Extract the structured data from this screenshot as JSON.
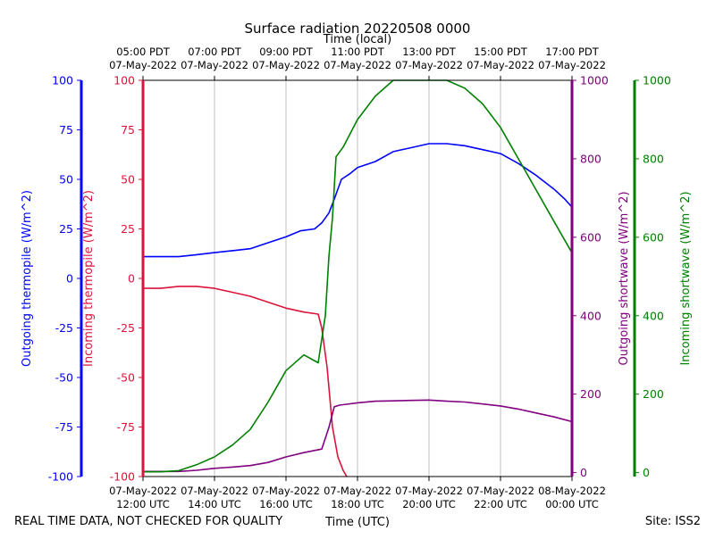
{
  "chart_data": {
    "type": "line",
    "title": "Surface radiation 20220508 0000",
    "top_axis_title": "Time (local)",
    "xlabel": "Time (UTC)",
    "footer_left": "REAL TIME DATA, NOT CHECKED FOR QUALITY",
    "footer_right": "Site: ISS2",
    "x_range_hours": [
      12,
      24
    ],
    "x_grid": true,
    "bottom_ticks": [
      {
        "hour": 12,
        "l1": "07-May-2022",
        "l2": "12:00 UTC"
      },
      {
        "hour": 14,
        "l1": "07-May-2022",
        "l2": "14:00 UTC"
      },
      {
        "hour": 16,
        "l1": "07-May-2022",
        "l2": "16:00 UTC"
      },
      {
        "hour": 18,
        "l1": "07-May-2022",
        "l2": "18:00 UTC"
      },
      {
        "hour": 20,
        "l1": "07-May-2022",
        "l2": "20:00 UTC"
      },
      {
        "hour": 22,
        "l1": "07-May-2022",
        "l2": "22:00 UTC"
      },
      {
        "hour": 24,
        "l1": "08-May-2022",
        "l2": "00:00 UTC"
      }
    ],
    "top_ticks": [
      {
        "hour": 12,
        "l1": "05:00 PDT",
        "l2": "07-May-2022"
      },
      {
        "hour": 14,
        "l1": "07:00 PDT",
        "l2": "07-May-2022"
      },
      {
        "hour": 16,
        "l1": "09:00 PDT",
        "l2": "07-May-2022"
      },
      {
        "hour": 18,
        "l1": "11:00 PDT",
        "l2": "07-May-2022"
      },
      {
        "hour": 20,
        "l1": "13:00 PDT",
        "l2": "07-May-2022"
      },
      {
        "hour": 22,
        "l1": "15:00 PDT",
        "l2": "07-May-2022"
      },
      {
        "hour": 24,
        "l1": "17:00 PDT",
        "l2": "07-May-2022"
      }
    ],
    "axes": [
      {
        "id": "outgoing_thermopile",
        "label": "Outgoing thermopile (W/m^2)",
        "color": "#0000ff",
        "range": [
          -100,
          100
        ],
        "ticks": [
          "-100",
          "-75",
          "-50",
          "-25",
          "0",
          "25",
          "50",
          "75",
          "100"
        ]
      },
      {
        "id": "incoming_thermopile",
        "label": "Incoming thermopile (W/m^2)",
        "color": "#dc143c",
        "range": [
          -100,
          100
        ],
        "ticks": [
          "-100",
          "-75",
          "-50",
          "-25",
          "0",
          "25",
          "50",
          "75",
          "100"
        ]
      },
      {
        "id": "outgoing_shortwave",
        "label": "Outgoing shortwave (W/m^2)",
        "color": "#800080",
        "range": [
          -10,
          1000
        ],
        "ticks": [
          "0",
          "200",
          "400",
          "600",
          "800",
          "1000"
        ]
      },
      {
        "id": "incoming_shortwave",
        "label": "Incoming shortwave (W/m^2)",
        "color": "#008000",
        "range": [
          -10,
          1000
        ],
        "ticks": [
          "0",
          "200",
          "400",
          "600",
          "800",
          "1000"
        ]
      }
    ],
    "series": [
      {
        "name": "Outgoing thermopile",
        "axis": "outgoing_thermopile",
        "color": "#0000ff",
        "points": [
          [
            12.0,
            11
          ],
          [
            12.5,
            11
          ],
          [
            13.0,
            11
          ],
          [
            13.5,
            12
          ],
          [
            14.0,
            13
          ],
          [
            14.5,
            14
          ],
          [
            15.0,
            15
          ],
          [
            15.5,
            18
          ],
          [
            16.0,
            21
          ],
          [
            16.4,
            24
          ],
          [
            16.8,
            25
          ],
          [
            17.0,
            28
          ],
          [
            17.2,
            33
          ],
          [
            17.35,
            40
          ],
          [
            17.45,
            45
          ],
          [
            17.55,
            50
          ],
          [
            17.8,
            53
          ],
          [
            18.0,
            56
          ],
          [
            18.5,
            59
          ],
          [
            19.0,
            64
          ],
          [
            19.5,
            66
          ],
          [
            20.0,
            68
          ],
          [
            20.5,
            68
          ],
          [
            21.0,
            67
          ],
          [
            21.5,
            65
          ],
          [
            22.0,
            63
          ],
          [
            22.5,
            58
          ],
          [
            23.0,
            52
          ],
          [
            23.5,
            45
          ],
          [
            23.8,
            40
          ],
          [
            24.0,
            36
          ]
        ]
      },
      {
        "name": "Incoming thermopile",
        "axis": "incoming_thermopile",
        "color": "#dc143c",
        "points": [
          [
            12.0,
            -5
          ],
          [
            12.5,
            -5
          ],
          [
            13.0,
            -4
          ],
          [
            13.5,
            -4
          ],
          [
            14.0,
            -5
          ],
          [
            14.5,
            -7
          ],
          [
            15.0,
            -9
          ],
          [
            15.5,
            -12
          ],
          [
            16.0,
            -15
          ],
          [
            16.5,
            -17
          ],
          [
            16.9,
            -18
          ],
          [
            17.0,
            -25
          ],
          [
            17.15,
            -45
          ],
          [
            17.3,
            -75
          ],
          [
            17.45,
            -90
          ],
          [
            17.6,
            -97
          ],
          [
            17.7,
            -100
          ]
        ]
      },
      {
        "name": "Outgoing shortwave",
        "axis": "outgoing_shortwave",
        "color": "#800080",
        "points": [
          [
            12.0,
            3
          ],
          [
            12.5,
            3
          ],
          [
            13.0,
            3
          ],
          [
            13.5,
            6
          ],
          [
            14.0,
            11
          ],
          [
            14.5,
            14
          ],
          [
            15.0,
            18
          ],
          [
            15.5,
            26
          ],
          [
            16.0,
            40
          ],
          [
            16.5,
            51
          ],
          [
            17.0,
            60
          ],
          [
            17.2,
            115
          ],
          [
            17.35,
            168
          ],
          [
            17.5,
            172
          ],
          [
            18.0,
            178
          ],
          [
            18.5,
            182
          ],
          [
            19.0,
            183
          ],
          [
            19.5,
            184
          ],
          [
            20.0,
            185
          ],
          [
            20.5,
            182
          ],
          [
            21.0,
            180
          ],
          [
            21.5,
            175
          ],
          [
            22.0,
            170
          ],
          [
            22.5,
            162
          ],
          [
            23.0,
            152
          ],
          [
            23.5,
            142
          ],
          [
            24.0,
            130
          ]
        ]
      },
      {
        "name": "Incoming shortwave",
        "axis": "incoming_shortwave",
        "color": "#008000",
        "points": [
          [
            12.0,
            2
          ],
          [
            12.5,
            2
          ],
          [
            13.0,
            5
          ],
          [
            13.5,
            20
          ],
          [
            14.0,
            40
          ],
          [
            14.5,
            70
          ],
          [
            15.0,
            110
          ],
          [
            15.5,
            180
          ],
          [
            16.0,
            260
          ],
          [
            16.5,
            300
          ],
          [
            16.9,
            280
          ],
          [
            17.1,
            400
          ],
          [
            17.2,
            550
          ],
          [
            17.3,
            650
          ],
          [
            17.4,
            805
          ],
          [
            17.6,
            830
          ],
          [
            18.0,
            900
          ],
          [
            18.5,
            960
          ],
          [
            19.0,
            1000
          ],
          [
            19.5,
            1010
          ],
          [
            20.0,
            1010
          ],
          [
            20.5,
            1010
          ],
          [
            21.0,
            980
          ],
          [
            21.5,
            940
          ],
          [
            22.0,
            880
          ],
          [
            22.5,
            800
          ],
          [
            23.0,
            720
          ],
          [
            23.5,
            640
          ],
          [
            24.0,
            560
          ]
        ]
      }
    ]
  }
}
